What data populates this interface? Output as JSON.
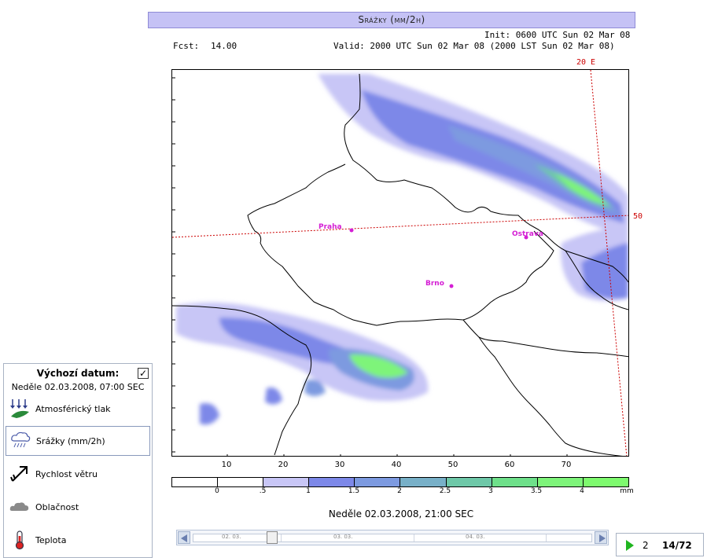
{
  "header": {
    "title": "Srážky (mm/2h)",
    "init": "Init: 0600 UTC Sun 02 Mar 08",
    "fcst_label": "Fcst:",
    "fcst_value": "14.00",
    "valid": "Valid: 2000 UTC Sun 02 Mar 08 (2000 LST Sun 02 Mar 08)"
  },
  "map": {
    "grid_labels": {
      "meridian": "20 E",
      "parallel": "50"
    },
    "cities": [
      {
        "name": "Praha"
      },
      {
        "name": "Ostrava"
      },
      {
        "name": "Brno"
      }
    ],
    "x_ticks": [
      "10",
      "20",
      "30",
      "40",
      "50",
      "60",
      "70"
    ]
  },
  "legend": {
    "labels": [
      "0",
      ".5",
      "1",
      "1.5",
      "2",
      "2.5",
      "3",
      "3.5",
      "4"
    ],
    "unit": "mm",
    "colors": [
      "#ffffff",
      "#ffffff",
      "#c8c6f6",
      "#7d88e8",
      "#7d9ae0",
      "#78b0c8",
      "#6ec8a8",
      "#6ee08a",
      "#7ef47a",
      "#7efa6e"
    ]
  },
  "valid_date": "Neděle 02.03.2008, 21:00 SEC",
  "timeline": {
    "labels": [
      "02. 03.",
      "03. 03.",
      "04. 03."
    ]
  },
  "player": {
    "step": "2",
    "frame": "14/72",
    "play_color": "#1fb51f"
  },
  "panel": {
    "title": "Výchozí datum:",
    "checked": true,
    "date": "Neděle 02.03.2008, 07:00 SEC",
    "layers": [
      {
        "label": "Atmosférický tlak",
        "icon": "pressure-icon"
      },
      {
        "label": "Srážky (mm/2h)",
        "icon": "rain-cloud-icon",
        "active": true
      },
      {
        "label": "Rychlost větru",
        "icon": "wind-arrow-icon"
      },
      {
        "label": "Oblačnost",
        "icon": "cloud-icon"
      },
      {
        "label": "Teplota",
        "icon": "thermometer-icon"
      }
    ]
  }
}
